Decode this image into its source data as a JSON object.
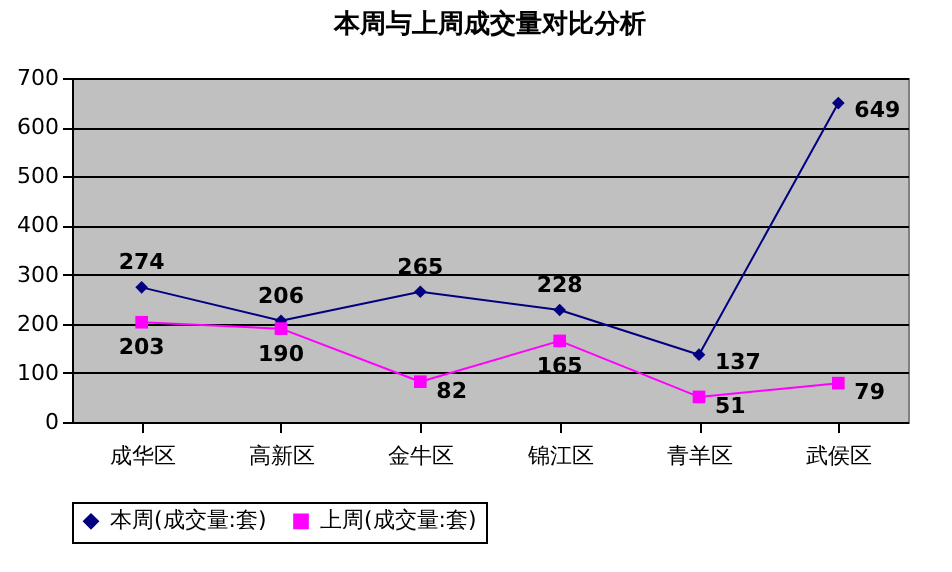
{
  "chart_data": {
    "type": "line",
    "title": "本周与上周成交量对比分析",
    "categories": [
      "成华区",
      "高新区",
      "金牛区",
      "锦江区",
      "青羊区",
      "武侯区"
    ],
    "series": [
      {
        "name": "本周(成交量:套)",
        "color": "#000080",
        "marker": "diamond",
        "values": [
          274,
          206,
          265,
          228,
          137,
          649
        ]
      },
      {
        "name": "上周(成交量:套)",
        "color": "#ff00ff",
        "marker": "square",
        "values": [
          203,
          190,
          82,
          165,
          51,
          79
        ]
      }
    ],
    "ylim": [
      0,
      700
    ],
    "yticks": [
      0,
      100,
      200,
      300,
      400,
      500,
      600,
      700
    ],
    "grid": "y",
    "legend": "bottom",
    "data_labels": true
  }
}
